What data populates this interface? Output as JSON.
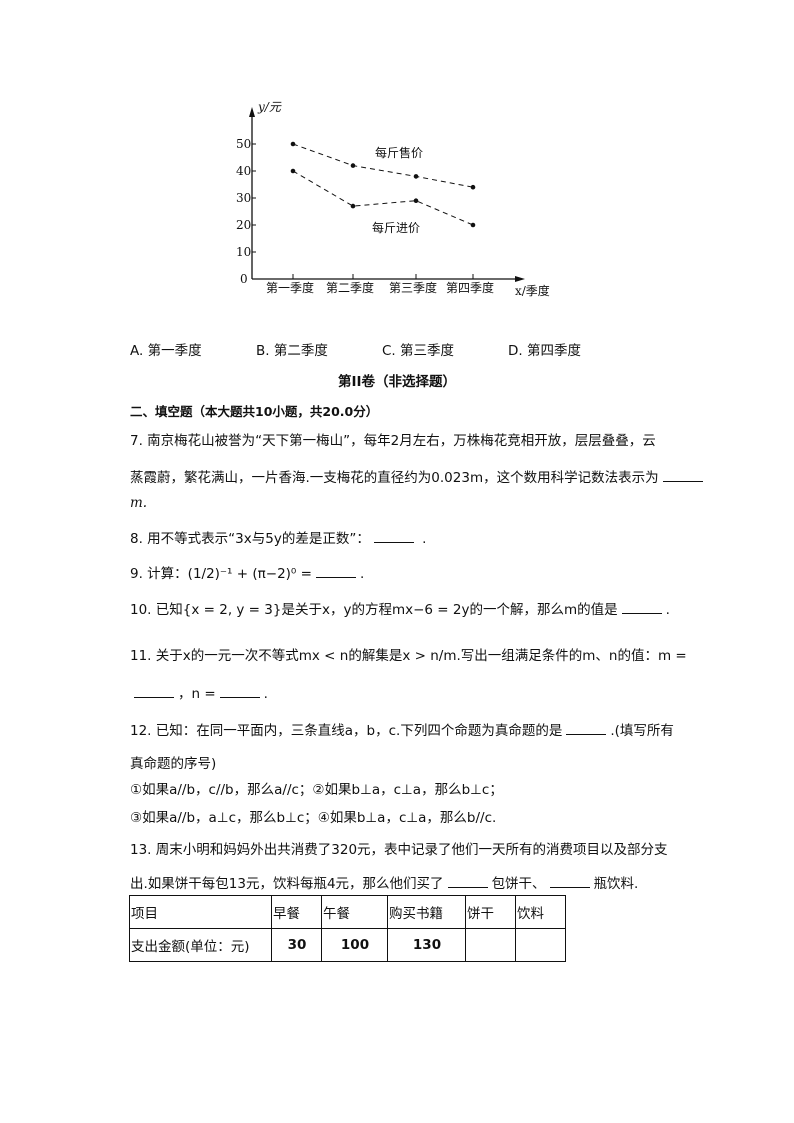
{
  "chart_data": {
    "type": "line",
    "ylabel": "y/元",
    "xlabel": "x/季度",
    "categories": [
      "第一季度",
      "第二季度",
      "第三季度",
      "第四季度"
    ],
    "y_ticks": [
      "0",
      "10",
      "20",
      "30",
      "40",
      "50"
    ],
    "ylim": [
      0,
      60
    ],
    "grid": false,
    "series": [
      {
        "name": "每斤售价",
        "values": [
          50,
          42,
          38,
          34
        ],
        "style": "dashed"
      },
      {
        "name": "每斤进价",
        "values": [
          40,
          27,
          29,
          20
        ],
        "style": "dashed"
      }
    ]
  },
  "options": [
    "A. 第一季度",
    "B. 第二季度",
    "C. 第三季度",
    "D. 第四季度"
  ],
  "part_title": "第II卷（非选择题）",
  "section_title": "二、填空题（本大题共10小题，共20.0分）",
  "q7": {
    "l1": "7.  南京梅花山被誉为“天下第一梅山”，每年2月左右，万株梅花竞相开放，层层叠叠，云",
    "l2": "蒸霞蔚，繁花满山，一片香海.一支梅花的直径约为0.023m，这个数用科学记数法表示为",
    "l3": "m."
  },
  "q8": "8.  用不等式表示“3x与5y的差是正数”：",
  "q9": "9.  计算：(1/2)⁻¹ + (π−2)⁰ =",
  "q10": "10.  已知{x = 2, y = 3}是关于x，y的方程mx−6 = 2y的一个解，那么m的值是",
  "q11": {
    "l1": "11.  关于x的一元一次不等式mx < n的解集是x > n/m.写出一组满足条件的m、n的值：m =",
    "l2": "，n ="
  },
  "q12": {
    "l1": "12.  已知：在同一平面内，三条直线a，b，c.下列四个命题为真命题的是",
    "l1b": ".(填写所有",
    "l2": "真命题的序号)",
    "l3": "①如果a//b，c//b，那么a//c；②如果b⊥a，c⊥a，那么b⊥c；",
    "l4": "③如果a//b，a⊥c，那么b⊥c；④如果b⊥a，c⊥a，那么b//c."
  },
  "q13": {
    "l1": "13.  周末小明和妈妈外出共消费了320元，表中记录了他们一天所有的消费项目以及部分支",
    "l2a": "出.如果饼干每包13元，饮料每瓶4元，那么他们买了",
    "l2b": "包饼干、",
    "l2c": "瓶饮料."
  },
  "table": {
    "headers": [
      "项目",
      "早餐",
      "午餐",
      "购买书籍",
      "饼干",
      "饮料"
    ],
    "row": [
      "支出金额(单位：元)",
      "30",
      "100",
      "130",
      "",
      ""
    ]
  }
}
